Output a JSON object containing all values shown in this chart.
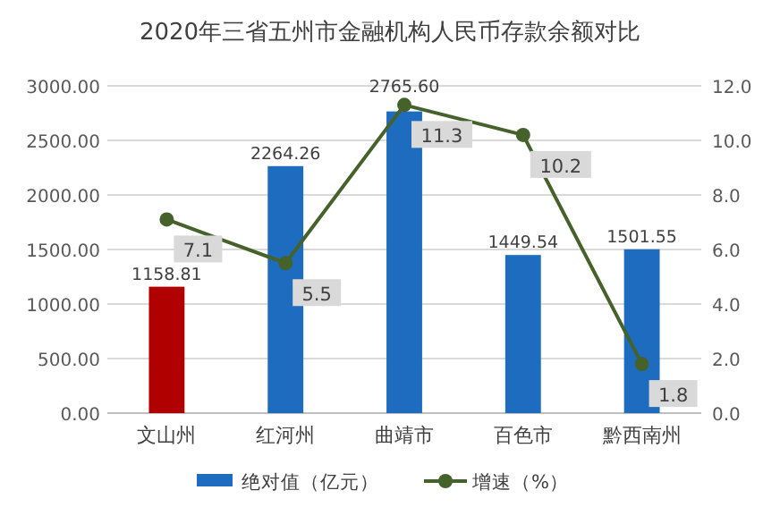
{
  "chart_data": {
    "type": "bar",
    "title": "2020年三省五州市金融机构人民币存款余额对比",
    "categories": [
      "文山州",
      "红河州",
      "曲靖市",
      "百色市",
      "黔西南州"
    ],
    "series": [
      {
        "name": "绝对值（亿元）",
        "colors": [
          "#b00000",
          "#1e6cc0",
          "#1e6cc0",
          "#1e6cc0",
          "#1e6cc0"
        ],
        "color": "#1e6cc0",
        "values": [
          1158.81,
          2264.26,
          2765.6,
          1449.54,
          1501.55
        ],
        "value_labels": [
          "1158.81",
          "2264.26",
          "2765.60",
          "1449.54",
          "1501.55"
        ]
      },
      {
        "name": "增速（%）",
        "type": "line",
        "axis": "y2",
        "color": "#44622a",
        "marker": "circle",
        "values": [
          7.1,
          5.5,
          11.3,
          10.2,
          1.8
        ],
        "value_labels": [
          "7.1",
          "5.5",
          "11.3",
          "10.2",
          "1.8"
        ]
      }
    ],
    "ylim": [
      0,
      3000
    ],
    "yticks": [
      {
        "value": 0,
        "label": "0.00"
      },
      {
        "value": 500,
        "label": "500.00"
      },
      {
        "value": 1000,
        "label": "1000.00"
      },
      {
        "value": 1500,
        "label": "1500.00"
      },
      {
        "value": 2000,
        "label": "2000.00"
      },
      {
        "value": 2500,
        "label": "2500.00"
      },
      {
        "value": 3000,
        "label": "3000.00"
      }
    ],
    "y2lim": [
      0,
      12
    ],
    "y2ticks": [
      {
        "value": 0,
        "label": "0.0"
      },
      {
        "value": 2,
        "label": "2.0"
      },
      {
        "value": 4,
        "label": "4.0"
      },
      {
        "value": 6,
        "label": "6.0"
      },
      {
        "value": 8,
        "label": "8.0"
      },
      {
        "value": 10,
        "label": "10.0"
      },
      {
        "value": 12,
        "label": "12.0"
      }
    ],
    "grid": "y",
    "legend": "bottom"
  }
}
